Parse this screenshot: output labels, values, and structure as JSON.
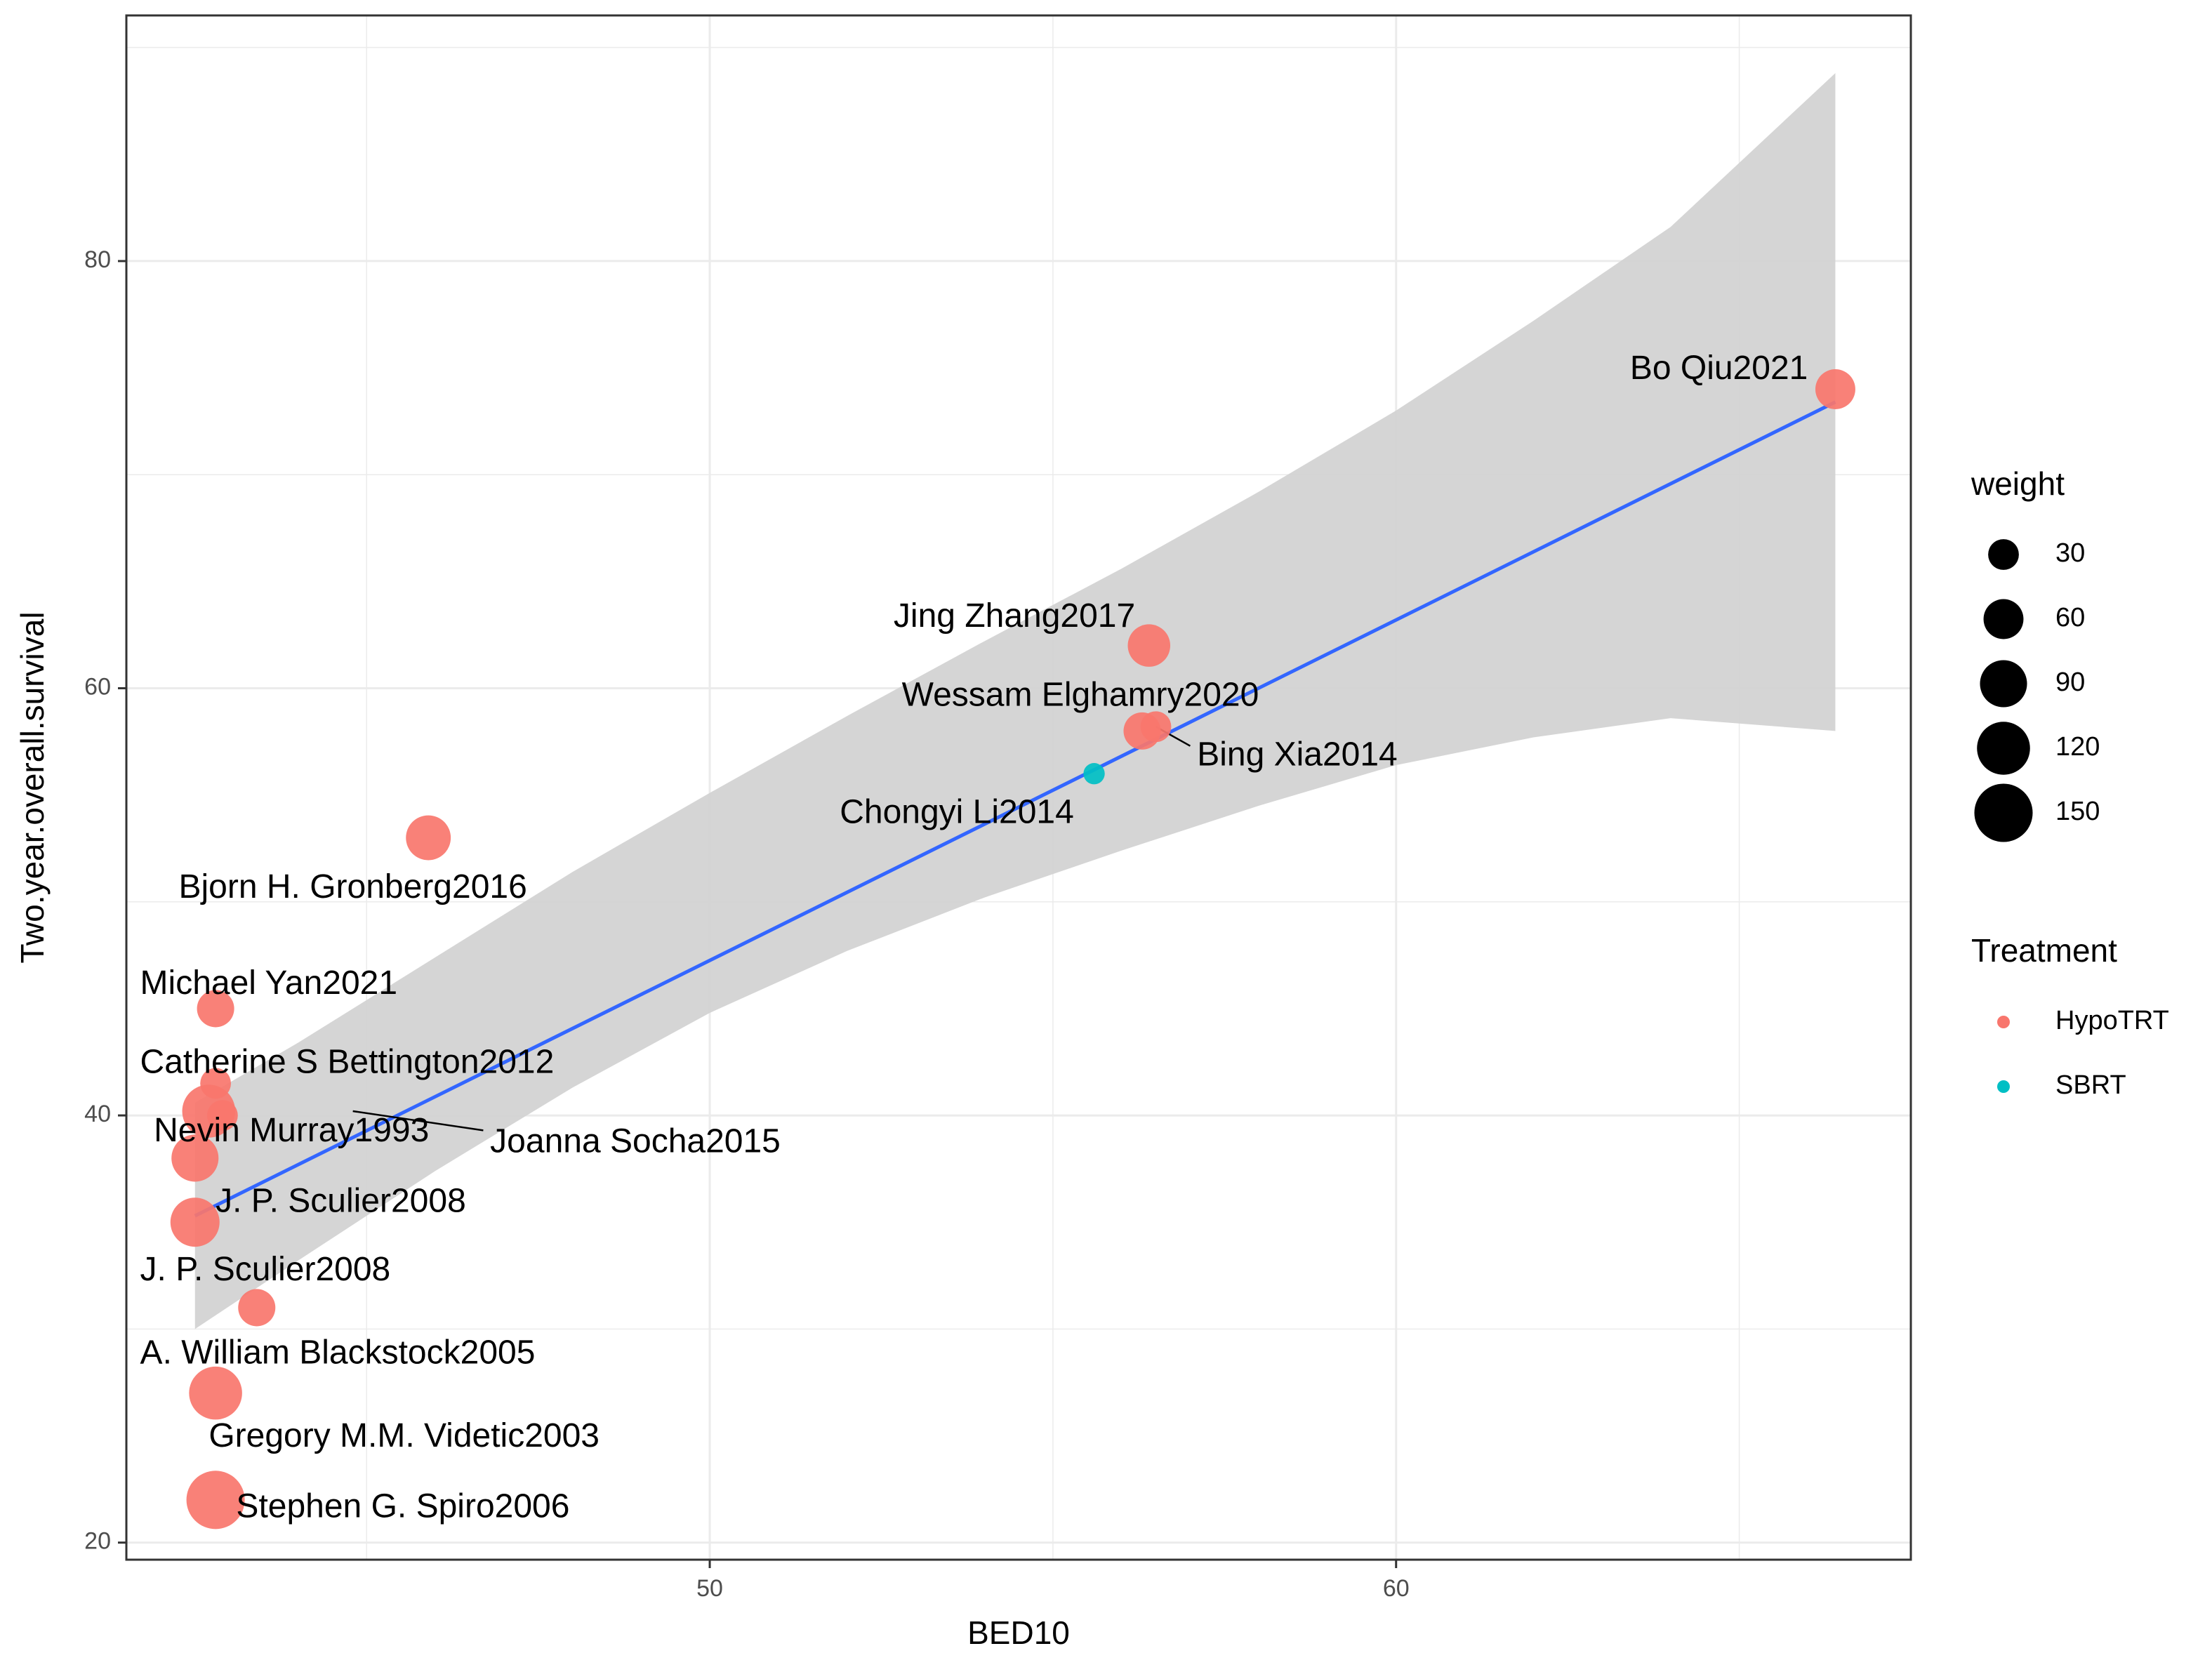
{
  "chart_data": {
    "type": "scatter",
    "xlabel": "BED10",
    "ylabel": "Two.year.overall.survival",
    "xlim": [
      41.5,
      67.5
    ],
    "ylim": [
      19.2,
      91.5
    ],
    "x_ticks": [
      50,
      60
    ],
    "y_ticks": [
      20,
      40,
      60,
      80
    ],
    "grid": true,
    "colors": {
      "HypoTRT": "#F8766D",
      "SBRT": "#00BFC4",
      "fit_line": "#3366FF",
      "ribbon": "#D3D3D3"
    },
    "points": [
      {
        "study": "Bo Qiu2021",
        "bed10": 66.4,
        "survival": 74,
        "weight": 60,
        "treatment": "HypoTRT"
      },
      {
        "study": "Jing Zhang2017",
        "bed10": 56.4,
        "survival": 62,
        "weight": 70,
        "treatment": "HypoTRT"
      },
      {
        "study": "Wessam Elghamry2020",
        "bed10": 56.3,
        "survival": 58,
        "weight": 50,
        "treatment": "HypoTRT"
      },
      {
        "study": "Bing Xia2014",
        "bed10": 56.5,
        "survival": 58.2,
        "weight": 30,
        "treatment": "HypoTRT"
      },
      {
        "study": "Chongyi Li2014",
        "bed10": 55.6,
        "survival": 56,
        "weight": 10,
        "treatment": "SBRT"
      },
      {
        "study": "Bjorn H. Gronberg2016",
        "bed10": 45.9,
        "survival": 53,
        "weight": 80,
        "treatment": "HypoTRT"
      },
      {
        "study": "Michael Yan2021",
        "bed10": 42.8,
        "survival": 45,
        "weight": 50,
        "treatment": "HypoTRT"
      },
      {
        "study": "Catherine S Bettington2012",
        "bed10": 42.8,
        "survival": 41.5,
        "weight": 30,
        "treatment": "HypoTRT"
      },
      {
        "study": "Nevin Murray1993",
        "bed10": 42.7,
        "survival": 40.2,
        "weight": 120,
        "treatment": "HypoTRT"
      },
      {
        "study": "Joanna Socha2015",
        "bed10": 42.9,
        "survival": 40,
        "weight": 30,
        "treatment": "HypoTRT"
      },
      {
        "study": "J. P. Sculier2008",
        "bed10": 42.5,
        "survival": 38,
        "weight": 90,
        "treatment": "HypoTRT"
      },
      {
        "study": "J. P. Sculier2008",
        "bed10": 42.5,
        "survival": 35,
        "weight": 100,
        "treatment": "HypoTRT"
      },
      {
        "study": "A. William Blackstock2005",
        "bed10": 43.4,
        "survival": 31,
        "weight": 50,
        "treatment": "HypoTRT"
      },
      {
        "study": "Gregory M.M. Videtic2003",
        "bed10": 42.8,
        "survival": 27,
        "weight": 120,
        "treatment": "HypoTRT"
      },
      {
        "study": "Stephen G. Spiro2006",
        "bed10": 42.8,
        "survival": 22,
        "weight": 150,
        "treatment": "HypoTRT"
      }
    ],
    "labels": [
      {
        "text": "Bo Qiu2021",
        "x": 66.0,
        "y": 74.9,
        "anchor": "end"
      },
      {
        "text": "Jing Zhang2017",
        "x": 56.2,
        "y": 63.3,
        "anchor": "end"
      },
      {
        "text": "Wessam Elghamry2020",
        "x": 55.4,
        "y": 59.6,
        "anchor": "middle"
      },
      {
        "text": "Bing Xia2014",
        "x": 57.1,
        "y": 56.8,
        "anchor": "start"
      },
      {
        "text": "Chongyi Li2014",
        "x": 53.6,
        "y": 54.1,
        "anchor": "middle"
      },
      {
        "text": "Bjorn H. Gronberg2016",
        "x": 44.8,
        "y": 50.6,
        "anchor": "middle"
      },
      {
        "text": "Michael Yan2021",
        "x": 41.7,
        "y": 46.1,
        "anchor": "start"
      },
      {
        "text": "Catherine S Bettington2012",
        "x": 41.7,
        "y": 42.4,
        "anchor": "start"
      },
      {
        "text": "Nevin Murray1993",
        "x": 41.9,
        "y": 39.2,
        "anchor": "start"
      },
      {
        "text": "Joanna Socha2015",
        "x": 46.8,
        "y": 38.7,
        "anchor": "start"
      },
      {
        "text": "J. P. Sculier2008",
        "x": 42.8,
        "y": 35.9,
        "anchor": "start"
      },
      {
        "text": "J. P. Sculier2008",
        "x": 41.7,
        "y": 32.7,
        "anchor": "start"
      },
      {
        "text": "A. William Blackstock2005",
        "x": 41.7,
        "y": 28.8,
        "anchor": "start"
      },
      {
        "text": "Gregory M.M. Videtic2003",
        "x": 42.7,
        "y": 24.9,
        "anchor": "start"
      },
      {
        "text": "Stephen G. Spiro2006",
        "x": 43.1,
        "y": 21.6,
        "anchor": "start"
      }
    ],
    "leader_lines": [
      {
        "from": [
          56.5,
          58.2
        ],
        "to": [
          57.0,
          57.3
        ]
      },
      {
        "from": [
          44.8,
          40.2
        ],
        "to": [
          46.7,
          39.3
        ]
      }
    ],
    "fit": {
      "method": "lm",
      "x": [
        42.5,
        66.4
      ],
      "y": [
        35.3,
        73.4
      ],
      "ci_x": [
        42.5,
        44.0,
        46.0,
        48.0,
        50.0,
        52.0,
        54.0,
        56.0,
        58.0,
        60.0,
        62.0,
        64.0,
        66.4
      ],
      "ci_upper": [
        40.6,
        43.4,
        47.4,
        51.4,
        55.1,
        58.7,
        62.2,
        65.6,
        69.2,
        73.0,
        77.2,
        81.6,
        88.8
      ],
      "ci_lower": [
        30.0,
        33.2,
        37.4,
        41.3,
        44.8,
        47.7,
        50.2,
        52.4,
        54.5,
        56.4,
        57.7,
        58.6,
        58.0
      ]
    },
    "legend": {
      "placement": "right",
      "size": {
        "title": "weight",
        "values": [
          30,
          60,
          90,
          120,
          150
        ]
      },
      "color": {
        "title": "Treatment",
        "entries": [
          "HypoTRT",
          "SBRT"
        ]
      }
    }
  }
}
